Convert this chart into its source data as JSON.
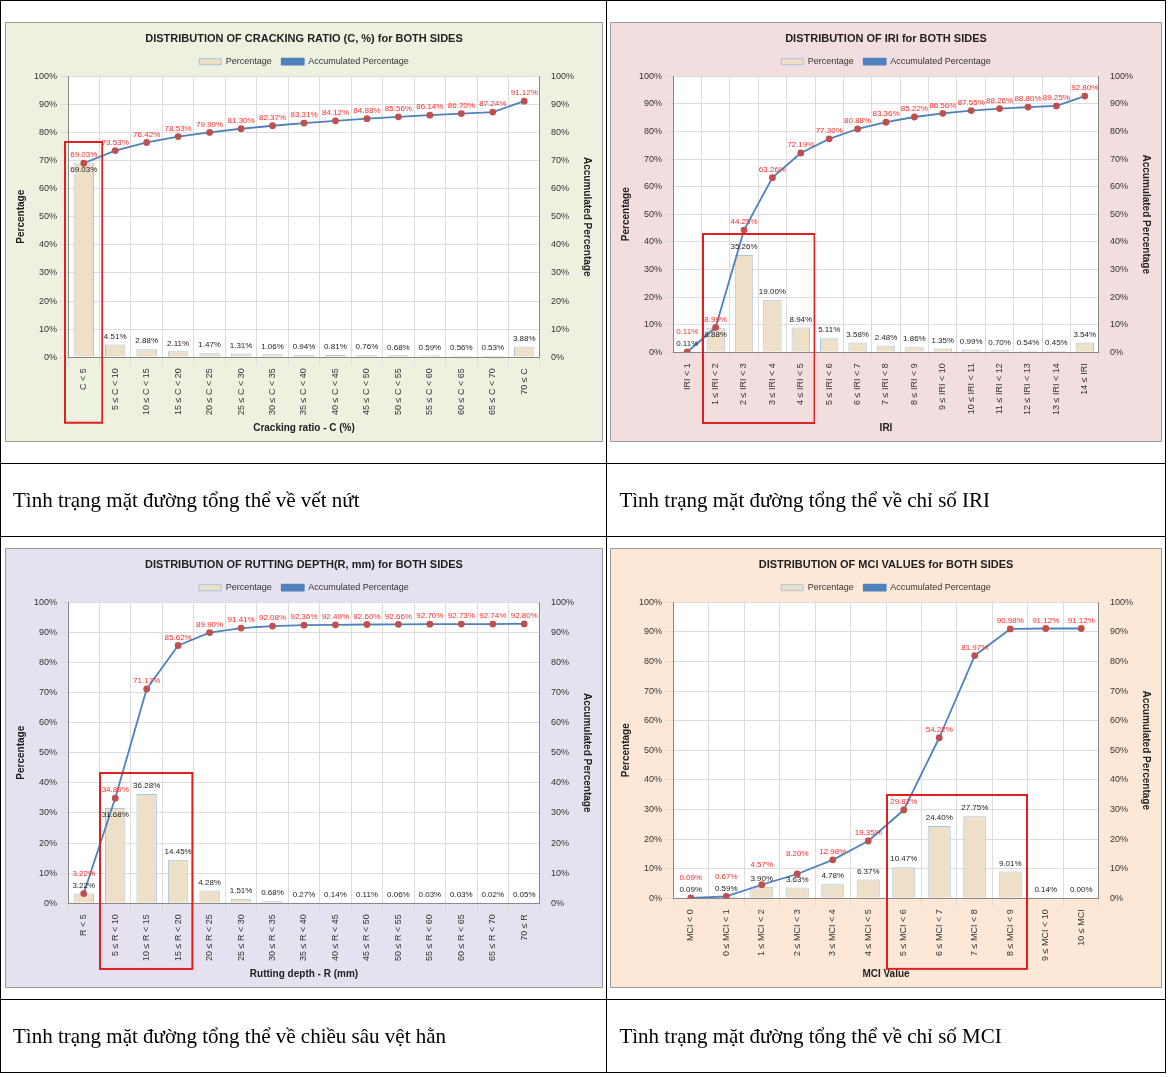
{
  "chart_data": [
    {
      "type": "bar",
      "title": "DISTRIBUTION OF CRACKING RATIO (C, %) for BOTH SIDES",
      "xlabel": "Cracking ratio - C (%)",
      "ylabel": "Percentage",
      "y2label": "Accumulated Percentage",
      "legend": "top",
      "grid": true,
      "marker": "circle",
      "categories": [
        "C < 5",
        "5 ≤ C < 10",
        "10 ≤ C < 15",
        "15 ≤ C < 20",
        "20 ≤ C < 25",
        "25 ≤ C < 30",
        "30 ≤ C < 35",
        "35 ≤ C < 40",
        "40 ≤ C < 45",
        "45 ≤ C < 50",
        "50 ≤ C < 55",
        "55 ≤ C < 60",
        "60 ≤ C < 65",
        "65 ≤ C < 70",
        "70 ≤ C"
      ],
      "series": [
        {
          "name": "Percentage",
          "color": "#eedfc8",
          "values": [
            69.03,
            4.51,
            2.88,
            2.11,
            1.47,
            1.31,
            1.06,
            0.94,
            0.81,
            0.76,
            0.68,
            0.59,
            0.56,
            0.53,
            3.88
          ],
          "value_labels": [
            "69.03%",
            "4.51%",
            "2.88%",
            "2.11%",
            "1.47%",
            "1.31%",
            "1.06%",
            "0.94%",
            "0.81%",
            "0.76%",
            "0.68%",
            "0.59%",
            "0.56%",
            "0.53%",
            "3.88%"
          ]
        },
        {
          "name": "Accumulated Percentage",
          "type": "line",
          "axis": "y2",
          "color": "#4f81bd",
          "values": [
            69.03,
            73.53,
            76.42,
            78.53,
            79.99,
            81.3,
            82.37,
            83.31,
            84.12,
            84.88,
            85.56,
            86.14,
            86.7,
            87.24,
            91.12
          ],
          "value_labels": [
            "69.03%",
            "73.53%",
            "76.42%",
            "78.53%",
            "79.99%",
            "81.30%",
            "82.37%",
            "83.31%",
            "84.12%",
            "84.88%",
            "85.56%",
            "86.14%",
            "86.70%",
            "87.24%",
            "91.12%"
          ]
        }
      ],
      "ylim": [
        0,
        100
      ],
      "yticks": [
        {
          "value": 0,
          "label": "0%"
        },
        {
          "value": 10,
          "label": "10%"
        },
        {
          "value": 20,
          "label": "20%"
        },
        {
          "value": 30,
          "label": "30%"
        },
        {
          "value": 40,
          "label": "40%"
        },
        {
          "value": 50,
          "label": "50%"
        },
        {
          "value": 60,
          "label": "60%"
        },
        {
          "value": 70,
          "label": "70%"
        },
        {
          "value": 80,
          "label": "80%"
        },
        {
          "value": 90,
          "label": "90%"
        },
        {
          "value": 100,
          "label": "100%"
        }
      ],
      "y2lim": [
        0,
        100
      ],
      "y2ticks": [
        {
          "value": 0,
          "label": "0%"
        },
        {
          "value": 10,
          "label": "10%"
        },
        {
          "value": 20,
          "label": "20%"
        },
        {
          "value": 30,
          "label": "30%"
        },
        {
          "value": 40,
          "label": "40%"
        },
        {
          "value": 50,
          "label": "50%"
        },
        {
          "value": 60,
          "label": "60%"
        },
        {
          "value": 70,
          "label": "70%"
        },
        {
          "value": 80,
          "label": "80%"
        },
        {
          "value": 90,
          "label": "90%"
        },
        {
          "value": 100,
          "label": "100%"
        }
      ],
      "annotations": [
        "Tình trạng mặt đường tổng thể về vết nứt"
      ]
    },
    {
      "type": "bar",
      "title": "DISTRIBUTION OF IRI for BOTH SIDES",
      "xlabel": "IRI",
      "ylabel": "Percentage",
      "y2label": "Accumulated Percentage",
      "legend": "top",
      "grid": true,
      "marker": "circle",
      "categories": [
        "IRI < 1",
        "1 ≤ IRI < 2",
        "2 ≤ IRI < 3",
        "3 ≤ IRI < 4",
        "4 ≤ IRI < 5",
        "5 ≤ IRI < 6",
        "6 ≤ IRI < 7",
        "7 ≤ IRI < 8",
        "8 ≤ IRI < 9",
        "9 ≤ IRI < 10",
        "10 ≤ IRI < 11",
        "11 ≤ IRI < 12",
        "12 ≤ IRI < 13",
        "13 ≤ IRI < 14",
        "14 ≤ IRI"
      ],
      "series": [
        {
          "name": "Percentage",
          "color": "#eedfc8",
          "values": [
            0.11,
            8.88,
            35.26,
            19.0,
            8.94,
            5.11,
            3.58,
            2.48,
            1.86,
            1.35,
            0.99,
            0.7,
            0.54,
            0.45,
            3.54
          ],
          "value_labels": [
            "0.11%",
            "8.88%",
            "35.26%",
            "19.00%",
            "8.94%",
            "5.11%",
            "3.58%",
            "2.48%",
            "1.86%",
            "1.35%",
            "0.99%",
            "0.70%",
            "0.54%",
            "0.45%",
            "3.54%"
          ]
        },
        {
          "name": "Accumulated Percentage",
          "type": "line",
          "axis": "y2",
          "color": "#4f81bd",
          "values": [
            0.11,
            8.99,
            44.25,
            63.26,
            72.19,
            77.3,
            80.88,
            83.36,
            85.22,
            86.56,
            87.55,
            88.26,
            88.8,
            89.25,
            92.8
          ],
          "value_labels": [
            "0.11%",
            "8.99%",
            "44.25%",
            "63.26%",
            "72.19%",
            "77.30%",
            "80.88%",
            "83.36%",
            "85.22%",
            "86.56%",
            "87.55%",
            "88.26%",
            "88.80%",
            "89.25%",
            "92.80%"
          ]
        }
      ],
      "ylim": [
        0,
        100
      ],
      "yticks": [
        {
          "value": 0,
          "label": "0%"
        },
        {
          "value": 10,
          "label": "10%"
        },
        {
          "value": 20,
          "label": "20%"
        },
        {
          "value": 30,
          "label": "30%"
        },
        {
          "value": 40,
          "label": "40%"
        },
        {
          "value": 50,
          "label": "50%"
        },
        {
          "value": 60,
          "label": "60%"
        },
        {
          "value": 70,
          "label": "70%"
        },
        {
          "value": 80,
          "label": "80%"
        },
        {
          "value": 90,
          "label": "90%"
        },
        {
          "value": 100,
          "label": "100%"
        }
      ],
      "y2lim": [
        0,
        100
      ],
      "y2ticks": [
        {
          "value": 0,
          "label": "0%"
        },
        {
          "value": 10,
          "label": "10%"
        },
        {
          "value": 20,
          "label": "20%"
        },
        {
          "value": 30,
          "label": "30%"
        },
        {
          "value": 40,
          "label": "40%"
        },
        {
          "value": 50,
          "label": "50%"
        },
        {
          "value": 60,
          "label": "60%"
        },
        {
          "value": 70,
          "label": "70%"
        },
        {
          "value": 80,
          "label": "80%"
        },
        {
          "value": 90,
          "label": "90%"
        },
        {
          "value": 100,
          "label": "100%"
        }
      ],
      "annotations": [
        "Tình trạng mặt đường tổng thể về chỉ số IRI"
      ]
    },
    {
      "type": "bar",
      "title": "DISTRIBUTION OF RUTTING DEPTH(R, mm) for BOTH SIDES",
      "xlabel": "Rutting depth - R (mm)",
      "ylabel": "Percentage",
      "y2label": "Accumulated Percentage",
      "legend": "top",
      "grid": true,
      "marker": "circle",
      "categories": [
        "R < 5",
        "5 ≤ R < 10",
        "10 ≤ R < 15",
        "15 ≤ R < 20",
        "20 ≤ R < 25",
        "25 ≤ R < 30",
        "30 ≤ R < 35",
        "35 ≤ R < 40",
        "40 ≤ R < 45",
        "45 ≤ R < 50",
        "50 ≤ R < 55",
        "55 ≤ R < 60",
        "60 ≤ R < 65",
        "65 ≤ R < 70",
        "70 ≤ R"
      ],
      "series": [
        {
          "name": "Percentage",
          "color": "#eedfc8",
          "values": [
            3.22,
            31.68,
            36.28,
            14.45,
            4.28,
            1.51,
            0.68,
            0.27,
            0.14,
            0.11,
            0.06,
            0.03,
            0.03,
            0.02,
            0.05
          ],
          "value_labels": [
            "3.22%",
            "31.68%",
            "36.28%",
            "14.45%",
            "4.28%",
            "1.51%",
            "0.68%",
            "0.27%",
            "0.14%",
            "0.11%",
            "0.06%",
            "0.03%",
            "0.03%",
            "0.02%",
            "0.05%"
          ]
        },
        {
          "name": "Accumulated Percentage",
          "type": "line",
          "axis": "y2",
          "color": "#4f81bd",
          "values": [
            3.22,
            34.89,
            71.17,
            85.62,
            89.9,
            91.41,
            92.08,
            92.36,
            92.49,
            92.6,
            92.66,
            92.7,
            92.73,
            92.74,
            92.8
          ],
          "value_labels": [
            "3.22%",
            "34.89%",
            "71.17%",
            "85.62%",
            "89.90%",
            "91.41%",
            "92.08%",
            "92.36%",
            "92.49%",
            "92.60%",
            "92.66%",
            "92.70%",
            "92.73%",
            "92.74%",
            "92.80%"
          ]
        }
      ],
      "ylim": [
        0,
        100
      ],
      "yticks": [
        {
          "value": 0,
          "label": "0%"
        },
        {
          "value": 10,
          "label": "10%"
        },
        {
          "value": 20,
          "label": "20%"
        },
        {
          "value": 30,
          "label": "30%"
        },
        {
          "value": 40,
          "label": "40%"
        },
        {
          "value": 50,
          "label": "50%"
        },
        {
          "value": 60,
          "label": "60%"
        },
        {
          "value": 70,
          "label": "70%"
        },
        {
          "value": 80,
          "label": "80%"
        },
        {
          "value": 90,
          "label": "90%"
        },
        {
          "value": 100,
          "label": "100%"
        }
      ],
      "y2lim": [
        0,
        100
      ],
      "y2ticks": [
        {
          "value": 0,
          "label": "0%"
        },
        {
          "value": 10,
          "label": "10%"
        },
        {
          "value": 20,
          "label": "20%"
        },
        {
          "value": 30,
          "label": "30%"
        },
        {
          "value": 40,
          "label": "40%"
        },
        {
          "value": 50,
          "label": "50%"
        },
        {
          "value": 60,
          "label": "60%"
        },
        {
          "value": 70,
          "label": "70%"
        },
        {
          "value": 80,
          "label": "80%"
        },
        {
          "value": 90,
          "label": "90%"
        },
        {
          "value": 100,
          "label": "100%"
        }
      ],
      "annotations": [
        "Tình trạng mặt đường tổng thể về chiều sâu vệt hằn"
      ]
    },
    {
      "type": "bar",
      "title": "DISTRIBUTION OF MCI VALUES for BOTH SIDES",
      "xlabel": "MCI Value",
      "ylabel": "Percentage",
      "y2label": "Accumulated Percentage",
      "legend": "top",
      "grid": true,
      "marker": "circle",
      "categories": [
        "MCI < 0",
        "0 ≤ MCI < 1",
        "1 ≤ MCI < 2",
        "2 ≤ MCI < 3",
        "3 ≤ MCI < 4",
        "4 ≤ MCI < 5",
        "5 ≤ MCI < 6",
        "6 ≤ MCI < 7",
        "7 ≤ MCI < 8",
        "8 ≤ MCI < 9",
        "9 ≤ MCI < 10",
        "10 ≤ MCI"
      ],
      "series": [
        {
          "name": "Percentage",
          "color": "#eedfc8",
          "values": [
            0.09,
            0.59,
            3.9,
            3.63,
            4.78,
            6.37,
            10.47,
            24.4,
            27.75,
            9.01,
            0.14,
            0.0
          ],
          "value_labels": [
            "0.09%",
            "0.59%",
            "3.90%",
            "3.63%",
            "4.78%",
            "6.37%",
            "10.47%",
            "24.40%",
            "27.75%",
            "9.01%",
            "0.14%",
            "0.00%"
          ]
        },
        {
          "name": "Accumulated Percentage",
          "type": "line",
          "axis": "y2",
          "color": "#4f81bd",
          "values": [
            0.09,
            0.67,
            4.57,
            8.2,
            12.98,
            19.35,
            29.82,
            54.22,
            81.97,
            90.98,
            91.12,
            91.12
          ],
          "value_labels": [
            "0.09%",
            "0.67%",
            "4.57%",
            "8.20%",
            "12.98%",
            "19.35%",
            "29.82%",
            "54.22%",
            "81.97%",
            "90.98%",
            "91.12%",
            "91.12%"
          ]
        }
      ],
      "ylim": [
        0,
        100
      ],
      "yticks": [
        {
          "value": 0,
          "label": "0%"
        },
        {
          "value": 10,
          "label": "10%"
        },
        {
          "value": 20,
          "label": "20%"
        },
        {
          "value": 30,
          "label": "30%"
        },
        {
          "value": 40,
          "label": "40%"
        },
        {
          "value": 50,
          "label": "50%"
        },
        {
          "value": 60,
          "label": "60%"
        },
        {
          "value": 70,
          "label": "70%"
        },
        {
          "value": 80,
          "label": "80%"
        },
        {
          "value": 90,
          "label": "90%"
        },
        {
          "value": 100,
          "label": "100%"
        }
      ],
      "y2lim": [
        0,
        100
      ],
      "y2ticks": [
        {
          "value": 0,
          "label": "0%"
        },
        {
          "value": 10,
          "label": "10%"
        },
        {
          "value": 20,
          "label": "20%"
        },
        {
          "value": 30,
          "label": "30%"
        },
        {
          "value": 40,
          "label": "40%"
        },
        {
          "value": 50,
          "label": "50%"
        },
        {
          "value": 60,
          "label": "60%"
        },
        {
          "value": 70,
          "label": "70%"
        },
        {
          "value": 80,
          "label": "80%"
        },
        {
          "value": 90,
          "label": "90%"
        },
        {
          "value": 100,
          "label": "100%"
        }
      ],
      "annotations": [
        "Tình trạng mặt đường tổng thể về chỉ số MCI"
      ]
    }
  ]
}
